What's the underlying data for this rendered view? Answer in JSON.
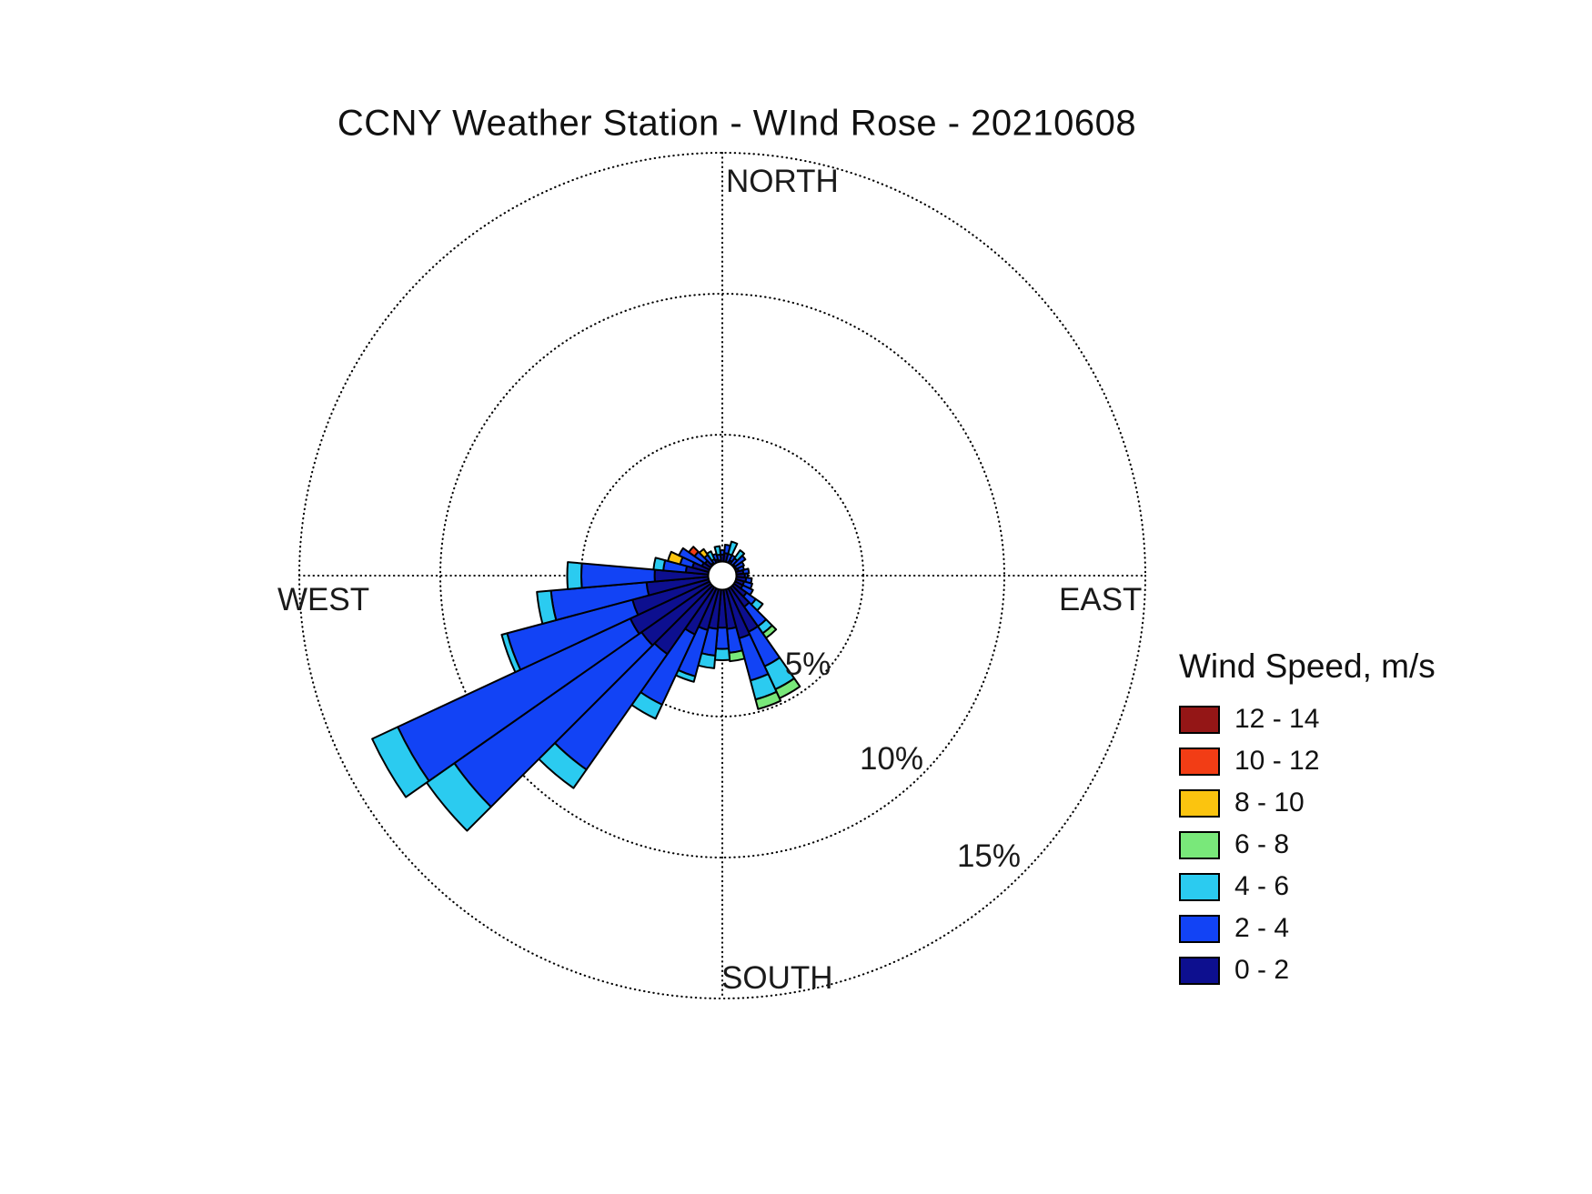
{
  "title": "CCNY Weather Station - WInd Rose - 20210608",
  "compass": {
    "north": "NORTH",
    "south": "SOUTH",
    "east": "EAST",
    "west": "WEST"
  },
  "ring_labels": {
    "r5": "5%",
    "r10": "10%",
    "r15": "15%"
  },
  "legend": {
    "title": "Wind Speed, m/s",
    "items": [
      {
        "label": "12 - 14",
        "color": "#941616"
      },
      {
        "label": "10 - 12",
        "color": "#f23d15"
      },
      {
        "label": "8 - 10",
        "color": "#fbc40f"
      },
      {
        "label": "6 - 8",
        "color": "#79e87a"
      },
      {
        "label": "4 - 6",
        "color": "#2bcbf0"
      },
      {
        "label": "2 - 4",
        "color": "#1243f5"
      },
      {
        "label": "0 - 2",
        "color": "#0d0f8f"
      }
    ]
  },
  "chart_data": {
    "type": "windrose-stacked-polar-bar",
    "units": "percent of time",
    "sector_width_deg": 10,
    "ring_percents": [
      5,
      10,
      15
    ],
    "grid_style": "dotted",
    "speed_bins": [
      {
        "label": "0 - 2",
        "color": "#0d0f8f"
      },
      {
        "label": "2 - 4",
        "color": "#1243f5"
      },
      {
        "label": "4 - 6",
        "color": "#2bcbf0"
      },
      {
        "label": "6 - 8",
        "color": "#79e87a"
      },
      {
        "label": "8 - 10",
        "color": "#fbc40f"
      },
      {
        "label": "10 - 12",
        "color": "#f23d15"
      },
      {
        "label": "12 - 14",
        "color": "#941616"
      }
    ],
    "sectors": [
      {
        "dir": 0,
        "values": [
          0.75,
          0.15,
          0,
          0,
          0,
          0,
          0
        ]
      },
      {
        "dir": 10,
        "values": [
          0.8,
          0.3,
          0,
          0,
          0,
          0,
          0
        ]
      },
      {
        "dir": 20,
        "values": [
          0.5,
          0.3,
          0.45,
          0,
          0,
          0,
          0
        ]
      },
      {
        "dir": 30,
        "values": [
          0.6,
          0.2,
          0,
          0,
          0,
          0,
          0
        ]
      },
      {
        "dir": 40,
        "values": [
          0.5,
          0.25,
          0.35,
          0,
          0,
          0,
          0
        ]
      },
      {
        "dir": 50,
        "values": [
          0.55,
          0.45,
          0,
          0,
          0,
          0,
          0
        ]
      },
      {
        "dir": 60,
        "values": [
          0.55,
          0.3,
          0,
          0,
          0,
          0,
          0
        ]
      },
      {
        "dir": 70,
        "values": [
          0.6,
          0.2,
          0,
          0,
          0,
          0,
          0
        ]
      },
      {
        "dir": 80,
        "values": [
          0.75,
          0.2,
          0,
          0,
          0,
          0,
          0
        ]
      },
      {
        "dir": 90,
        "values": [
          0.8,
          0.1,
          0,
          0,
          0,
          0,
          0
        ]
      },
      {
        "dir": 100,
        "values": [
          0.85,
          0.2,
          0,
          0,
          0,
          0,
          0
        ]
      },
      {
        "dir": 110,
        "values": [
          0.8,
          0.3,
          0,
          0,
          0,
          0,
          0
        ]
      },
      {
        "dir": 120,
        "values": [
          0.8,
          0.4,
          0,
          0,
          0,
          0,
          0
        ]
      },
      {
        "dir": 130,
        "values": [
          1.05,
          0.4,
          0.3,
          0,
          0,
          0,
          0
        ]
      },
      {
        "dir": 140,
        "values": [
          1.35,
          0.85,
          0.3,
          0.2,
          0,
          0,
          0
        ]
      },
      {
        "dir": 150,
        "values": [
          2.2,
          1.35,
          0.9,
          0.35,
          0,
          0,
          0
        ]
      },
      {
        "dir": 160,
        "values": [
          2.3,
          1.55,
          0.7,
          0.35,
          0,
          0,
          0
        ]
      },
      {
        "dir": 170,
        "values": [
          1.9,
          0.85,
          0,
          0.3,
          0,
          0,
          0
        ]
      },
      {
        "dir": 180,
        "values": [
          1.85,
          0.75,
          0.4,
          0,
          0,
          0,
          0
        ]
      },
      {
        "dir": 190,
        "values": [
          1.9,
          0.95,
          0.45,
          0,
          0,
          0,
          0
        ]
      },
      {
        "dir": 200,
        "values": [
          2.0,
          1.7,
          0.2,
          0,
          0,
          0,
          0
        ]
      },
      {
        "dir": 210,
        "values": [
          2.3,
          2.75,
          0.55,
          0,
          0,
          0,
          0
        ]
      },
      {
        "dir": 220,
        "values": [
          3.4,
          5.0,
          0.8,
          0,
          0,
          0,
          0
        ]
      },
      {
        "dir": 230,
        "values": [
          3.5,
          8.1,
          1.2,
          0,
          0,
          0,
          0
        ]
      },
      {
        "dir": 240,
        "values": [
          3.6,
          9.1,
          1.0,
          0,
          0,
          0,
          0
        ]
      },
      {
        "dir": 250,
        "values": [
          3.3,
          4.6,
          0.2,
          0,
          0,
          0,
          0
        ]
      },
      {
        "dir": 260,
        "values": [
          2.7,
          3.4,
          0.5,
          0,
          0,
          0,
          0
        ]
      },
      {
        "dir": 270,
        "values": [
          2.4,
          2.6,
          0.5,
          0,
          0,
          0,
          0
        ]
      },
      {
        "dir": 280,
        "values": [
          1.3,
          0.8,
          0.35,
          0,
          0,
          0,
          0
        ]
      },
      {
        "dir": 290,
        "values": [
          1.1,
          0.45,
          0,
          0,
          0.45,
          0,
          0
        ]
      },
      {
        "dir": 300,
        "values": [
          0.8,
          0.9,
          0,
          0,
          0,
          0,
          0
        ]
      },
      {
        "dir": 310,
        "values": [
          0.75,
          0.45,
          0,
          0,
          0,
          0.25,
          0
        ]
      },
      {
        "dir": 320,
        "values": [
          0.55,
          0.35,
          0,
          0,
          0.25,
          0,
          0
        ]
      },
      {
        "dir": 330,
        "values": [
          0.5,
          0.15,
          0.3,
          0,
          0,
          0,
          0
        ]
      },
      {
        "dir": 340,
        "values": [
          0.6,
          0.2,
          0,
          0,
          0,
          0,
          0
        ]
      },
      {
        "dir": 350,
        "values": [
          0.55,
          0.2,
          0.3,
          0,
          0,
          0,
          0
        ]
      }
    ]
  }
}
